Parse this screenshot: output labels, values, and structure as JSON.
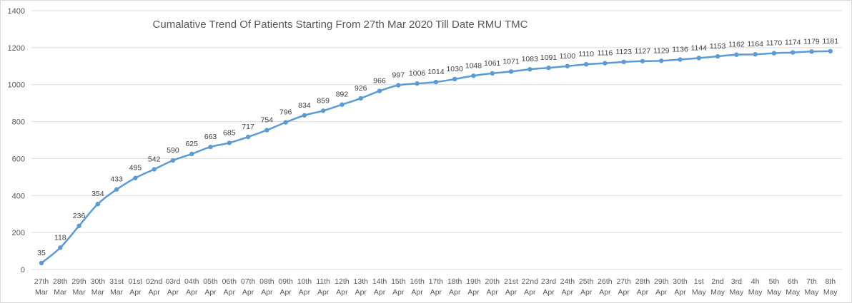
{
  "chart_data": {
    "type": "line",
    "title": "Cumalative Trend Of Patients Starting From 27th Mar 2020 Till Date RMU TMC",
    "xlabel": "",
    "ylabel": "",
    "ylim": [
      0,
      1400
    ],
    "yticks": [
      0,
      200,
      400,
      600,
      800,
      1000,
      1200,
      1400
    ],
    "grid": true,
    "legend": "none",
    "line_color": "#5b9bd5",
    "categories": [
      [
        "27th",
        "Mar"
      ],
      [
        "28th",
        "Mar"
      ],
      [
        "29th",
        "Mar"
      ],
      [
        "30th",
        "Mar"
      ],
      [
        "31st",
        "Mar"
      ],
      [
        "01st",
        "Apr"
      ],
      [
        "02nd",
        "Apr"
      ],
      [
        "03rd",
        "Apr"
      ],
      [
        "04th",
        "Apr"
      ],
      [
        "05th",
        "Apr"
      ],
      [
        "06th",
        "Apr"
      ],
      [
        "07th",
        "Apr"
      ],
      [
        "08th",
        "Apr"
      ],
      [
        "09th",
        "Apr"
      ],
      [
        "10th",
        "Apr"
      ],
      [
        "11th",
        "Apr"
      ],
      [
        "12th",
        "Apr"
      ],
      [
        "13th",
        "Apr"
      ],
      [
        "14th",
        "Apr"
      ],
      [
        "15th",
        "Apr"
      ],
      [
        "16th",
        "Apr"
      ],
      [
        "17th",
        "Apr"
      ],
      [
        "18th",
        "Apr"
      ],
      [
        "19th",
        "Apr"
      ],
      [
        "20th",
        "Apr"
      ],
      [
        "21st",
        "Apr"
      ],
      [
        "22nd",
        "Apr"
      ],
      [
        "23rd",
        "Apr"
      ],
      [
        "24th",
        "Apr"
      ],
      [
        "25th",
        "Apr"
      ],
      [
        "26th",
        "Apr"
      ],
      [
        "27th",
        "Apr"
      ],
      [
        "28th",
        "Apr"
      ],
      [
        "29th",
        "Apr"
      ],
      [
        "30th",
        "Apr"
      ],
      [
        "1st",
        "May"
      ],
      [
        "2nd",
        "May"
      ],
      [
        "3rd",
        "May"
      ],
      [
        "4h",
        "May"
      ],
      [
        "5th",
        "May"
      ],
      [
        "6th",
        "May"
      ],
      [
        "7th",
        "May"
      ],
      [
        "8th",
        "May"
      ]
    ],
    "series": [
      {
        "values": [
          35,
          118,
          236,
          354,
          433,
          495,
          542,
          590,
          625,
          663,
          685,
          717,
          754,
          796,
          834,
          859,
          892,
          926,
          966,
          997,
          1006,
          1014,
          1030,
          1048,
          1061,
          1071,
          1083,
          1091,
          1100,
          1110,
          1116,
          1123,
          1127,
          1129,
          1136,
          1144,
          1153,
          1162,
          1164,
          1170,
          1174,
          1179,
          1181
        ]
      }
    ]
  }
}
